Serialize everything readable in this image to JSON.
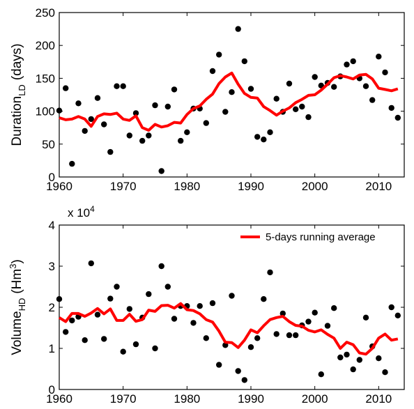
{
  "chart_data": [
    {
      "type": "scatter",
      "ylabel": {
        "main": "Duration",
        "sub": "LD",
        "unit": "(days)"
      },
      "xlabel": "",
      "xlim": [
        1960,
        2014
      ],
      "ylim": [
        0,
        250
      ],
      "xticks": [
        "1960",
        "1970",
        "1980",
        "1990",
        "2000",
        "2010"
      ],
      "yticks": [
        "0",
        "50",
        "100",
        "150",
        "200",
        "250"
      ],
      "grid": false,
      "series": [
        {
          "kind": "points",
          "color": "#000000",
          "points": [
            [
              1960,
              101
            ],
            [
              1961,
              135
            ],
            [
              1962,
              20
            ],
            [
              1963,
              112
            ],
            [
              1964,
              70
            ],
            [
              1965,
              88
            ],
            [
              1966,
              120
            ],
            [
              1967,
              80
            ],
            [
              1968,
              38
            ],
            [
              1969,
              138
            ],
            [
              1970,
              138
            ],
            [
              1971,
              63
            ],
            [
              1972,
              97
            ],
            [
              1973,
              55
            ],
            [
              1974,
              63
            ],
            [
              1975,
              109
            ],
            [
              1976,
              9
            ],
            [
              1977,
              107
            ],
            [
              1978,
              133
            ],
            [
              1979,
              55
            ],
            [
              1980,
              68
            ],
            [
              1981,
              104
            ],
            [
              1982,
              104
            ],
            [
              1983,
              82
            ],
            [
              1984,
              161
            ],
            [
              1985,
              186
            ],
            [
              1986,
              99
            ],
            [
              1987,
              129
            ],
            [
              1988,
              225
            ],
            [
              1989,
              176
            ],
            [
              1990,
              134
            ],
            [
              1991,
              61
            ],
            [
              1992,
              57
            ],
            [
              1993,
              68
            ],
            [
              1994,
              119
            ],
            [
              1995,
              99
            ],
            [
              1996,
              142
            ],
            [
              1997,
              103
            ],
            [
              1998,
              107
            ],
            [
              1999,
              91
            ],
            [
              2000,
              152
            ],
            [
              2001,
              139
            ],
            [
              2002,
              143
            ],
            [
              2003,
              137
            ],
            [
              2004,
              153
            ],
            [
              2005,
              171
            ],
            [
              2006,
              176
            ],
            [
              2007,
              150
            ],
            [
              2008,
              138
            ],
            [
              2009,
              117
            ],
            [
              2010,
              183
            ],
            [
              2011,
              159
            ],
            [
              2012,
              105
            ],
            [
              2013,
              90
            ]
          ]
        },
        {
          "kind": "line",
          "color": "#ff0000",
          "points": [
            [
              1960,
              90
            ],
            [
              1961,
              87
            ],
            [
              1962,
              88
            ],
            [
              1963,
              92
            ],
            [
              1964,
              88
            ],
            [
              1965,
              77
            ],
            [
              1966,
              92
            ],
            [
              1967,
              96
            ],
            [
              1968,
              95
            ],
            [
              1969,
              97
            ],
            [
              1970,
              88
            ],
            [
              1971,
              86
            ],
            [
              1972,
              93
            ],
            [
              1973,
              75
            ],
            [
              1974,
              71
            ],
            [
              1975,
              80
            ],
            [
              1976,
              76
            ],
            [
              1977,
              78
            ],
            [
              1978,
              83
            ],
            [
              1979,
              82
            ],
            [
              1980,
              95
            ],
            [
              1981,
              104
            ],
            [
              1982,
              108
            ],
            [
              1983,
              118
            ],
            [
              1984,
              126
            ],
            [
              1985,
              142
            ],
            [
              1986,
              152
            ],
            [
              1987,
              158
            ],
            [
              1988,
              141
            ],
            [
              1989,
              127
            ],
            [
              1990,
              121
            ],
            [
              1991,
              120
            ],
            [
              1992,
              107
            ],
            [
              1993,
              101
            ],
            [
              1994,
              94
            ],
            [
              1995,
              100
            ],
            [
              1996,
              105
            ],
            [
              1997,
              113
            ],
            [
              1998,
              118
            ],
            [
              1999,
              124
            ],
            [
              2000,
              125
            ],
            [
              2001,
              132
            ],
            [
              2002,
              141
            ],
            [
              2003,
              151
            ],
            [
              2004,
              154
            ],
            [
              2005,
              152
            ],
            [
              2006,
              149
            ],
            [
              2007,
              155
            ],
            [
              2008,
              156
            ],
            [
              2009,
              149
            ],
            [
              2010,
              135
            ],
            [
              2011,
              133
            ],
            [
              2012,
              131
            ],
            [
              2013,
              134
            ]
          ]
        }
      ]
    },
    {
      "type": "scatter",
      "ylabel": {
        "main": "Volume",
        "sub": "HD",
        "unit": "(Hm",
        "sup": "3",
        "close": ")"
      },
      "xlabel": "",
      "multiplier": {
        "base": "x 10",
        "exp": "4"
      },
      "xlim": [
        1960,
        2014
      ],
      "ylim": [
        0,
        40000
      ],
      "xticks": [
        "1960",
        "1970",
        "1980",
        "1990",
        "2000",
        "2010"
      ],
      "yticks": [
        "0",
        "1",
        "2",
        "3",
        "4"
      ],
      "grid": false,
      "legend": {
        "position": "top-right",
        "entries": [
          {
            "label": "5-days running average",
            "color": "#ff0000"
          }
        ]
      },
      "series": [
        {
          "kind": "points",
          "color": "#000000",
          "points": [
            [
              1960,
              22000
            ],
            [
              1961,
              14000
            ],
            [
              1962,
              16800
            ],
            [
              1963,
              17700
            ],
            [
              1964,
              12000
            ],
            [
              1965,
              30700
            ],
            [
              1966,
              18200
            ],
            [
              1967,
              12300
            ],
            [
              1968,
              22100
            ],
            [
              1969,
              25000
            ],
            [
              1970,
              9200
            ],
            [
              1971,
              19600
            ],
            [
              1972,
              11000
            ],
            [
              1973,
              17500
            ],
            [
              1974,
              23200
            ],
            [
              1975,
              10000
            ],
            [
              1976,
              30000
            ],
            [
              1977,
              25000
            ],
            [
              1978,
              17200
            ],
            [
              1979,
              20300
            ],
            [
              1980,
              20300
            ],
            [
              1981,
              16200
            ],
            [
              1982,
              20300
            ],
            [
              1983,
              12500
            ],
            [
              1984,
              21000
            ],
            [
              1985,
              6000
            ],
            [
              1986,
              10800
            ],
            [
              1987,
              22800
            ],
            [
              1988,
              4500
            ],
            [
              1989,
              2300
            ],
            [
              1990,
              10300
            ],
            [
              1991,
              12500
            ],
            [
              1992,
              22000
            ],
            [
              1993,
              28500
            ],
            [
              1994,
              13500
            ],
            [
              1995,
              18500
            ],
            [
              1996,
              13200
            ],
            [
              1997,
              13200
            ],
            [
              1998,
              15600
            ],
            [
              1999,
              16500
            ],
            [
              2000,
              18700
            ],
            [
              2001,
              3700
            ],
            [
              2002,
              15500
            ],
            [
              2003,
              19800
            ],
            [
              2004,
              7800
            ],
            [
              2005,
              8500
            ],
            [
              2006,
              4900
            ],
            [
              2007,
              7200
            ],
            [
              2008,
              17500
            ],
            [
              2009,
              10500
            ],
            [
              2010,
              7600
            ],
            [
              2011,
              4200
            ],
            [
              2012,
              20000
            ],
            [
              2013,
              18000
            ]
          ]
        },
        {
          "kind": "line",
          "color": "#ff0000",
          "points": [
            [
              1960,
              17500
            ],
            [
              1961,
              16500
            ],
            [
              1962,
              18500
            ],
            [
              1963,
              18500
            ],
            [
              1964,
              17800
            ],
            [
              1965,
              18600
            ],
            [
              1966,
              19700
            ],
            [
              1967,
              18400
            ],
            [
              1968,
              19600
            ],
            [
              1969,
              16800
            ],
            [
              1970,
              16800
            ],
            [
              1971,
              18300
            ],
            [
              1972,
              16600
            ],
            [
              1973,
              17000
            ],
            [
              1974,
              19300
            ],
            [
              1975,
              19000
            ],
            [
              1976,
              20400
            ],
            [
              1977,
              20500
            ],
            [
              1978,
              19800
            ],
            [
              1979,
              20900
            ],
            [
              1980,
              19400
            ],
            [
              1981,
              19200
            ],
            [
              1982,
              18400
            ],
            [
              1983,
              17000
            ],
            [
              1984,
              16400
            ],
            [
              1985,
              14200
            ],
            [
              1986,
              11500
            ],
            [
              1987,
              11400
            ],
            [
              1988,
              10200
            ],
            [
              1989,
              12000
            ],
            [
              1990,
              14500
            ],
            [
              1991,
              13800
            ],
            [
              1992,
              15500
            ],
            [
              1993,
              17000
            ],
            [
              1994,
              17500
            ],
            [
              1995,
              17800
            ],
            [
              1996,
              16500
            ],
            [
              1997,
              15600
            ],
            [
              1998,
              15400
            ],
            [
              1999,
              14400
            ],
            [
              2000,
              14000
            ],
            [
              2001,
              14500
            ],
            [
              2002,
              13400
            ],
            [
              2003,
              12500
            ],
            [
              2004,
              10000
            ],
            [
              2005,
              11500
            ],
            [
              2006,
              10900
            ],
            [
              2007,
              8900
            ],
            [
              2008,
              8600
            ],
            [
              2009,
              10000
            ],
            [
              2010,
              12500
            ],
            [
              2011,
              13500
            ],
            [
              2012,
              12000
            ],
            [
              2013,
              12300
            ]
          ]
        }
      ]
    }
  ]
}
